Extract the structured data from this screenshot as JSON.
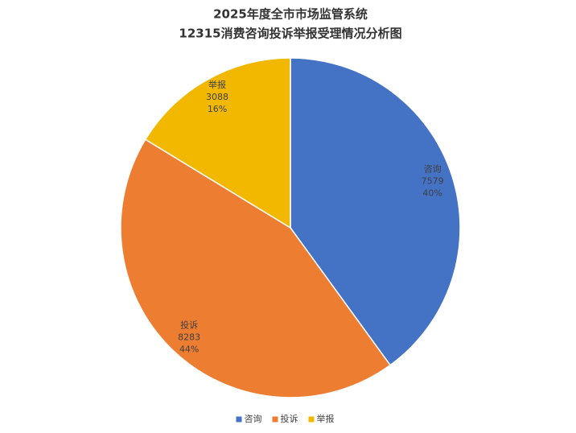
{
  "chart_data": {
    "type": "pie",
    "title": "2025年度全市市场监管系统",
    "subtitle": "12315消费咨询投诉举报受理情况分析图",
    "categories": [
      "咨询",
      "投诉",
      "举报"
    ],
    "values": [
      7579,
      8283,
      3088
    ],
    "percent_labels": [
      "40%",
      "44%",
      "16%"
    ],
    "colors": [
      "#4472c4",
      "#ed7d31",
      "#f2b800"
    ],
    "legend": "bottom"
  }
}
